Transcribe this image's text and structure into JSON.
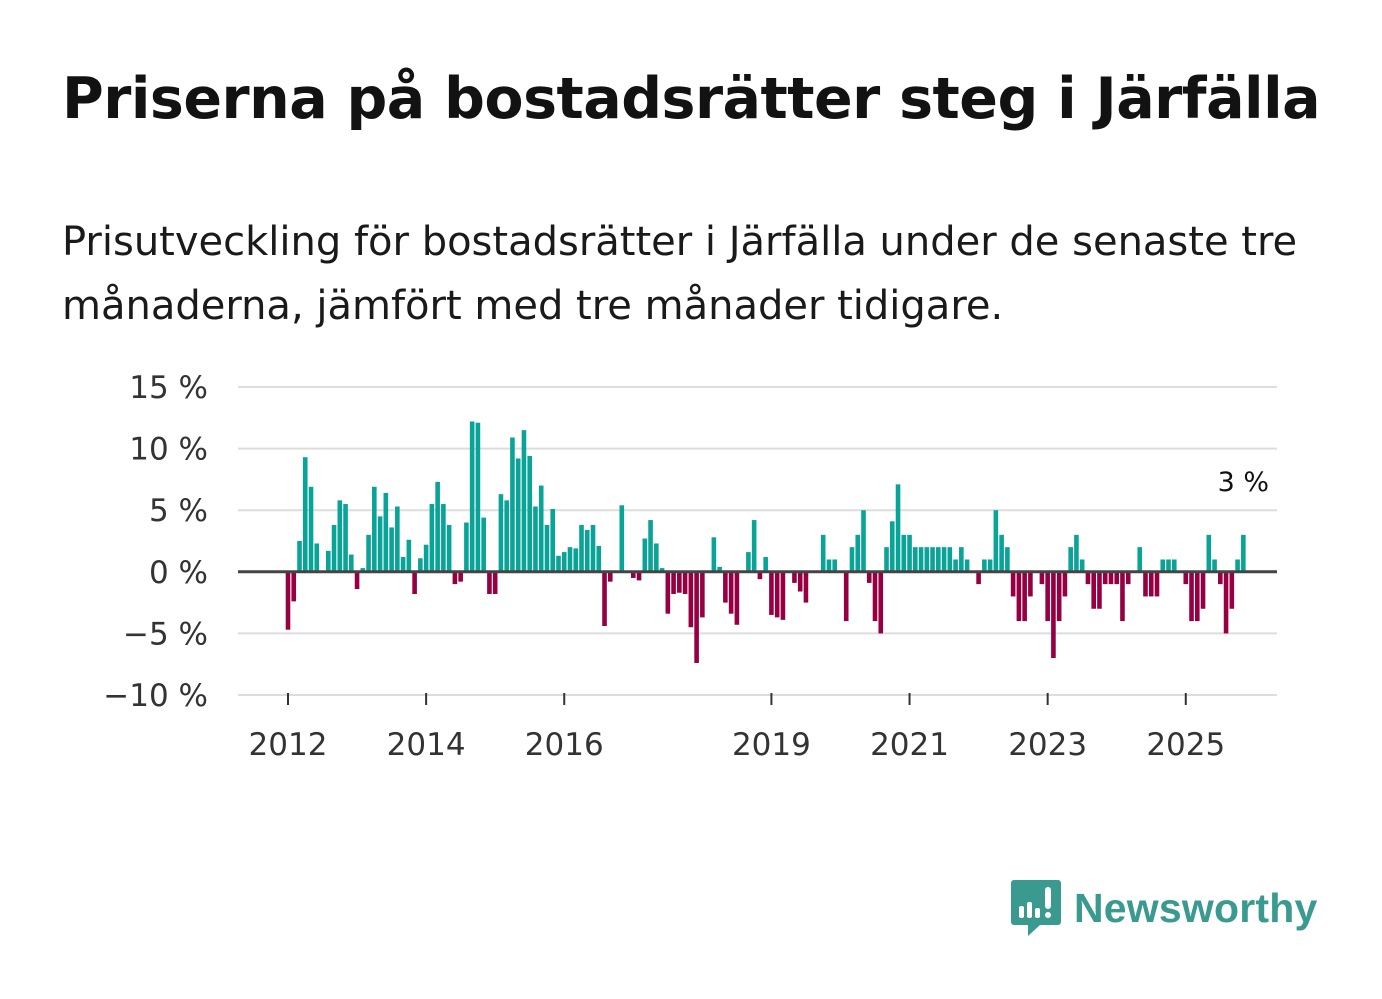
{
  "header": {
    "title": "Priserna på bostadsrätter steg i Järfälla",
    "subtitle": "Prisutveckling för bostadsrätter i Järfälla under de senaste tre månaderna, jämfört med tre månader tidigare."
  },
  "colors": {
    "positive": "#0aa398",
    "negative": "#960042",
    "zero_line": "#444444",
    "grid": "#dddddd",
    "brand": "#3a9a8f"
  },
  "branding": {
    "logo_text": "Newsworthy",
    "logo_icon": "bar-chart-speech-bubble-icon"
  },
  "chart_data": {
    "type": "bar",
    "title": "Priserna på bostadsrätter steg i Järfälla",
    "xlabel": "",
    "ylabel": "",
    "ylim": [
      -10,
      15
    ],
    "y_ticks": [
      15,
      10,
      5,
      0,
      -5,
      -10
    ],
    "y_tick_labels": [
      "15 %",
      "10 %",
      "5 %",
      "0 %",
      "−5 %",
      "−10 %"
    ],
    "x_tick_labels": [
      "2012",
      "2014",
      "2016",
      "2019",
      "2021",
      "2023",
      "2025"
    ],
    "x_tick_indices": [
      0,
      24,
      48,
      84,
      108,
      132,
      156
    ],
    "grid": true,
    "legend": "none",
    "start": "2012-01",
    "frequency": "monthly",
    "annotation": {
      "text": "3 %",
      "target": "last"
    },
    "values": [
      -4.7,
      -2.4,
      2.5,
      9.3,
      6.9,
      2.3,
      0,
      1.7,
      3.8,
      5.8,
      5.5,
      1.4,
      -1.4,
      0.3,
      3.0,
      6.9,
      4.5,
      6.4,
      3.6,
      5.3,
      1.2,
      2.6,
      -1.8,
      1.1,
      2.2,
      5.5,
      7.3,
      5.5,
      3.8,
      -1.0,
      -0.8,
      4.0,
      12.2,
      12.1,
      4.4,
      -1.8,
      -1.8,
      6.3,
      5.8,
      10.9,
      9.2,
      11.5,
      9.4,
      5.3,
      7.0,
      3.8,
      5.1,
      1.3,
      1.6,
      2.0,
      1.9,
      3.8,
      3.4,
      3.8,
      2.1,
      -4.4,
      -0.8,
      0,
      5.4,
      0,
      -0.5,
      -0.7,
      2.7,
      4.2,
      2.3,
      0.3,
      -3.4,
      -1.8,
      -1.7,
      -1.8,
      -4.5,
      -7.4,
      -3.7,
      0,
      2.8,
      0.4,
      -2.5,
      -3.4,
      -4.3,
      0,
      1.6,
      4.2,
      -0.6,
      1.2,
      -3.5,
      -3.7,
      -3.9,
      0,
      -0.9,
      -1.6,
      -2.5,
      0,
      0,
      3.0,
      1.0,
      1.0,
      0,
      -4.0,
      2.0,
      3.0,
      5.0,
      -0.9,
      -4.0,
      -5.0,
      2.0,
      4.1,
      7.1,
      3.0,
      3.0,
      2.0,
      2.0,
      2.0,
      2.0,
      2.0,
      2.0,
      2.0,
      1.0,
      2.0,
      1.0,
      0,
      -1.0,
      1.0,
      1.0,
      5.0,
      3.0,
      2.0,
      -2.0,
      -4.0,
      -4.0,
      -2.0,
      0,
      -1.0,
      -4.0,
      -7.0,
      -4.0,
      -2.0,
      2.0,
      3.0,
      1.0,
      -1.0,
      -3.0,
      -3.0,
      -1.0,
      -1.0,
      -1.0,
      -4.0,
      -1.0,
      0,
      2.0,
      -2.0,
      -2.0,
      -2.0,
      1.0,
      1.0,
      1.0,
      0,
      -1.0,
      -4.0,
      -4.0,
      -3.0,
      3.0,
      1.0,
      -1.0,
      -5.0,
      -3.0,
      1.0,
      3.0
    ]
  }
}
